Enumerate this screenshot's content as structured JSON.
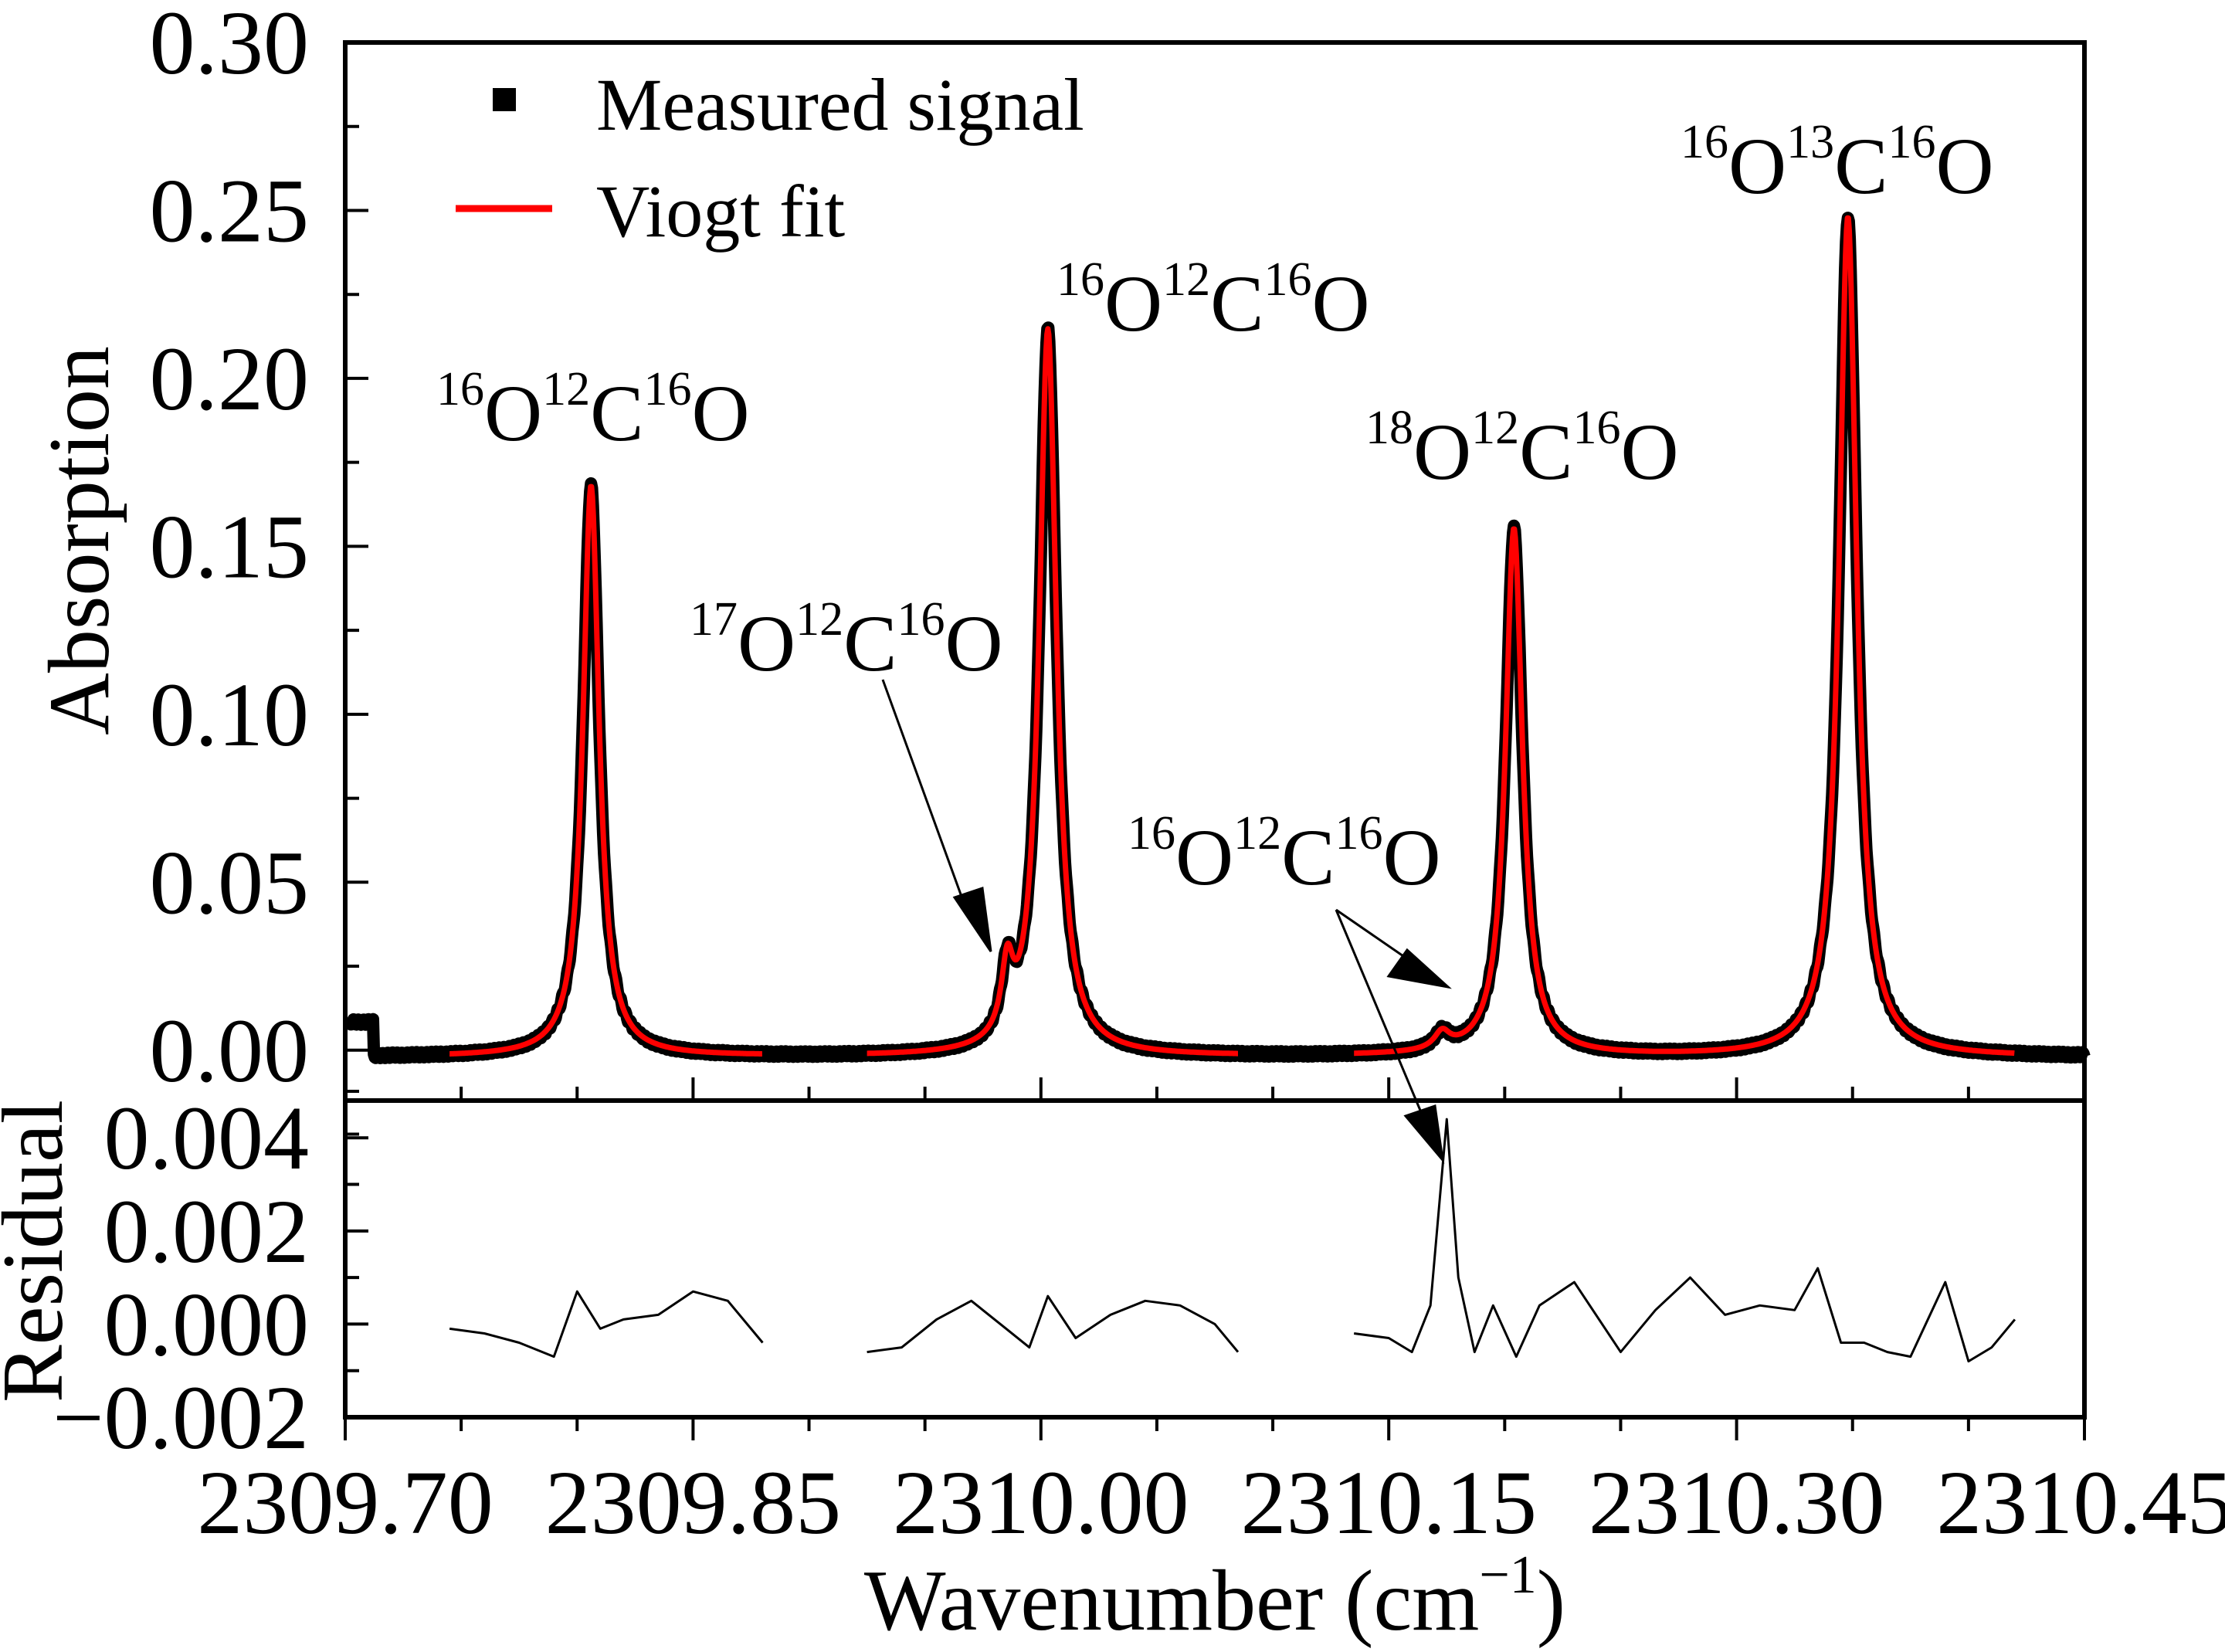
{
  "chart_data": {
    "type": "line",
    "x_axis": {
      "title": "Wavenumber (cm",
      "title_unit_sup": "−1",
      "title_close": ")",
      "range": [
        2309.7,
        2310.45
      ],
      "ticks": [
        2309.7,
        2309.85,
        2310.0,
        2310.15,
        2310.3,
        2310.45
      ],
      "tick_labels": [
        "2309.70",
        "2309.85",
        "2310.00",
        "2310.15",
        "2310.30",
        "2310.45"
      ]
    },
    "panels": [
      {
        "name": "absorption",
        "ylabel": "Absorption",
        "ylim": [
          -0.015,
          0.3
        ],
        "yticks": [
          0.0,
          0.05,
          0.1,
          0.15,
          0.2,
          0.25,
          0.3
        ],
        "ytick_labels": [
          "0.00",
          "0.05",
          "0.10",
          "0.15",
          "0.20",
          "0.25",
          "0.30"
        ],
        "legend": {
          "placement": "top-left",
          "entries": [
            {
              "label": "Measured signal",
              "marker": "square",
              "color": "#000000"
            },
            {
              "label": "Viogt fit",
              "marker": "line",
              "color": "#ff0000"
            }
          ]
        },
        "peaks": [
          {
            "center": 2309.806,
            "height": 0.17,
            "width": 0.0042,
            "label_pre": "16",
            "label_a": "O",
            "label_mid": "12",
            "label_b": "C",
            "label_post": "16",
            "label_c": "O"
          },
          {
            "center": 2309.9855,
            "height": 0.02,
            "width": 0.003,
            "label_pre": "17",
            "label_a": "O",
            "label_mid": "12",
            "label_b": "C",
            "label_post": "16",
            "label_c": "O"
          },
          {
            "center": 2310.003,
            "height": 0.216,
            "width": 0.0045,
            "label_pre": "16",
            "label_a": "O",
            "label_mid": "12",
            "label_b": "C",
            "label_post": "16",
            "label_c": "O"
          },
          {
            "center": 2310.173,
            "height": 0.005,
            "width": 0.004,
            "label_pre": "16",
            "label_a": "O",
            "label_mid": "12",
            "label_b": "C",
            "label_post": "16",
            "label_c": "O"
          },
          {
            "center": 2310.204,
            "height": 0.157,
            "width": 0.0044,
            "label_pre": "18",
            "label_a": "O",
            "label_mid": "12",
            "label_b": "C",
            "label_post": "16",
            "label_c": "O"
          },
          {
            "center": 2310.348,
            "height": 0.25,
            "width": 0.0046,
            "label_pre": "16",
            "label_a": "O",
            "label_mid": "13",
            "label_b": "C",
            "label_post": "16",
            "label_c": "O"
          }
        ],
        "fit_segments": [
          [
            2309.745,
            2309.88
          ],
          [
            2309.925,
            2310.085
          ],
          [
            2310.135,
            2310.42
          ]
        ],
        "baseline": -0.002
      },
      {
        "name": "residual",
        "ylabel": "Residual",
        "ylim": [
          -0.002,
          0.0048
        ],
        "yticks": [
          -0.002,
          0.0,
          0.002,
          0.004
        ],
        "ytick_labels": [
          "−0.002",
          "0.000",
          "0.002",
          "0.004"
        ],
        "segments": [
          {
            "x": [
              2309.745,
              2309.76,
              2309.775,
              2309.79,
              2309.8,
              2309.81,
              2309.82,
              2309.835,
              2309.85,
              2309.865,
              2309.88
            ],
            "y": [
              -0.0001,
              -0.0002,
              -0.0004,
              -0.0007,
              0.0007,
              -0.0001,
              0.0001,
              0.0002,
              0.0007,
              0.0005,
              -0.0004
            ]
          },
          {
            "x": [
              2309.925,
              2309.94,
              2309.955,
              2309.97,
              2309.985,
              2309.995,
              2310.003,
              2310.015,
              2310.03,
              2310.045,
              2310.06,
              2310.075,
              2310.085
            ],
            "y": [
              -0.0006,
              -0.0005,
              0.0001,
              0.0005,
              -0.0001,
              -0.0005,
              0.0006,
              -0.0003,
              0.0002,
              0.0005,
              0.0004,
              0.0,
              -0.0006
            ]
          },
          {
            "x": [
              2310.135,
              2310.15,
              2310.16,
              2310.168,
              2310.175,
              2310.18,
              2310.187,
              2310.195,
              2310.205,
              2310.215,
              2310.23,
              2310.25,
              2310.265,
              2310.28,
              2310.295,
              2310.31,
              2310.325,
              2310.335,
              2310.345,
              2310.355,
              2310.365,
              2310.375,
              2310.39,
              2310.4,
              2310.41,
              2310.42
            ],
            "y": [
              -0.0002,
              -0.0003,
              -0.0006,
              0.0004,
              0.0044,
              0.001,
              -0.0006,
              0.0004,
              -0.0007,
              0.0004,
              0.0009,
              -0.0006,
              0.0003,
              0.001,
              0.0002,
              0.0004,
              0.0003,
              0.0012,
              -0.0004,
              -0.0004,
              -0.0006,
              -0.0007,
              0.0009,
              -0.0008,
              -0.0005,
              0.0001
            ]
          }
        ]
      }
    ],
    "annotations": [
      {
        "text_pre": "16",
        "text_a": "O",
        "text_mid": "12",
        "text_b": "C",
        "text_post": "16",
        "text_c": "O",
        "target": "peak-1"
      },
      {
        "text_pre": "17",
        "text_a": "O",
        "text_mid": "12",
        "text_b": "C",
        "text_post": "16",
        "text_c": "O",
        "target": "peak-2"
      },
      {
        "text_pre": "16",
        "text_a": "O",
        "text_mid": "12",
        "text_b": "C",
        "text_post": "16",
        "text_c": "O",
        "target": "peak-3"
      },
      {
        "text_pre": "16",
        "text_a": "O",
        "text_mid": "12",
        "text_b": "C",
        "text_post": "16",
        "text_c": "O",
        "target": "peak-4"
      },
      {
        "text_pre": "18",
        "text_a": "O",
        "text_mid": "12",
        "text_b": "C",
        "text_post": "16",
        "text_c": "O",
        "target": "peak-5"
      },
      {
        "text_pre": "16",
        "text_a": "O",
        "text_mid": "13",
        "text_b": "C",
        "text_post": "16",
        "text_c": "O",
        "target": "peak-6"
      }
    ],
    "colors": {
      "measured": "#000000",
      "fit": "#ff0000",
      "axes": "#000000"
    }
  }
}
